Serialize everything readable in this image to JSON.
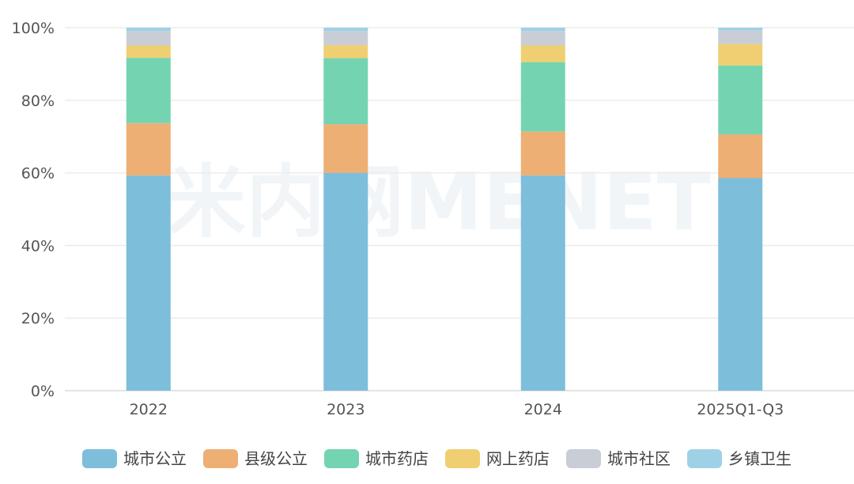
{
  "watermark": "米内网MENET",
  "chart_data": {
    "type": "bar",
    "stacked": true,
    "percent": true,
    "categories": [
      "2022",
      "2023",
      "2024",
      "2025Q1-Q3"
    ],
    "ylim": [
      0,
      100
    ],
    "yticks": [
      "0%",
      "20%",
      "40%",
      "60%",
      "80%",
      "100%"
    ],
    "grid": true,
    "legend_position": "bottom",
    "series": [
      {
        "name": "城市公立",
        "color": "#7dbedb",
        "values": [
          59.3,
          60.0,
          59.3,
          58.6
        ]
      },
      {
        "name": "县级公立",
        "color": "#eeaf74",
        "values": [
          14.4,
          13.4,
          12.1,
          12.0
        ]
      },
      {
        "name": "城市药店",
        "color": "#74d4b2",
        "values": [
          18.0,
          18.2,
          19.1,
          19.0
        ]
      },
      {
        "name": "网上药店",
        "color": "#efcf72",
        "values": [
          3.4,
          3.6,
          4.6,
          5.9
        ]
      },
      {
        "name": "城市社区",
        "color": "#c9cdd6",
        "values": [
          4.0,
          3.9,
          4.0,
          3.7
        ]
      },
      {
        "name": "乡镇卫生",
        "color": "#9fd1e6",
        "values": [
          0.9,
          0.9,
          0.9,
          0.8
        ]
      }
    ]
  }
}
